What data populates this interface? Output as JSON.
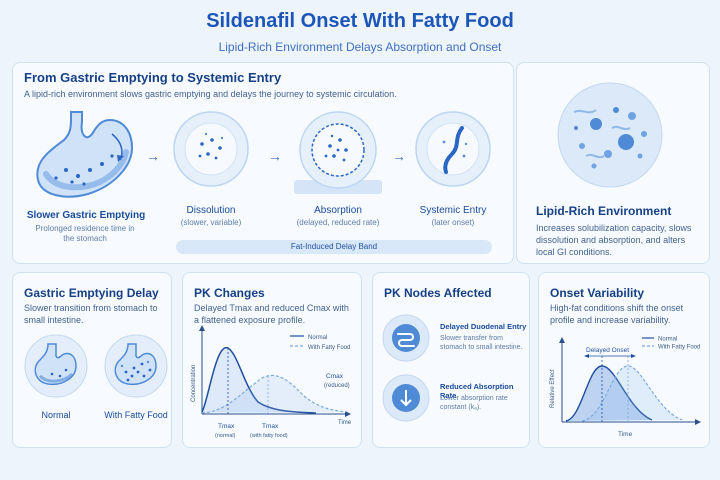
{
  "header": {
    "title": "Sildenafil Onset With Fatty Food",
    "subtitle": "Lipid-Rich Environment Delays Absorption and Onset"
  },
  "journey": {
    "title": "From Gastric Emptying to Systemic Entry",
    "description": "A lipid-rich environment slows gastric emptying and delays the journey to systemic circulation.",
    "steps": [
      {
        "name": "Slower Gastric Emptying",
        "sub": "Prolonged residence time in the stomach"
      },
      {
        "name": "Dissolution",
        "sub": "(slower, variable)"
      },
      {
        "name": "Absorption",
        "sub": "(delayed, reduced rate)"
      },
      {
        "name": "Systemic Entry",
        "sub": "(later onset)"
      }
    ],
    "band_label": "Fat-Induced Delay Band"
  },
  "lipid": {
    "title": "Lipid-Rich Environment",
    "description": "Increases solubilization capacity, slows dissolution and absorption, and alters local GI conditions."
  },
  "gastric_delay": {
    "title": "Gastric Emptying Delay",
    "description": "Slower transition from stomach to small intestine.",
    "normal_label": "Normal",
    "fatty_label": "With Fatty Food"
  },
  "pk_changes": {
    "title": "PK Changes",
    "description": "Delayed Tmax and reduced Cmax with a flattened exposure profile.",
    "legend_normal": "Normal",
    "legend_fatty": "With Fatty Food",
    "ylabel": "Concentration",
    "xlabel": "Time",
    "cmax_label": "Cmax",
    "cmax_sub": "(reduced)",
    "tmax_normal": "Tmax",
    "tmax_normal_sub": "(normal)",
    "tmax_fatty": "Tmax",
    "tmax_fatty_sub": "(with fatty food)"
  },
  "pk_nodes": {
    "title": "PK Nodes Affected",
    "nodes": [
      {
        "name": "Delayed Duodenal Entry",
        "sub": "Slower transfer from stomach to small intestine.",
        "icon": "intestine-icon"
      },
      {
        "name": "Reduced Absorption Rate",
        "sub": "Lower absorption rate constant (kₐ).",
        "icon": "down-arrow-icon"
      }
    ]
  },
  "onset": {
    "title": "Onset Variability",
    "description": "High-fat conditions shift the onset profile and increase variability.",
    "delayed_label": "Delayed Onset",
    "legend_normal": "Normal",
    "legend_fatty": "With Fatty Food",
    "ylabel": "Relative Effect",
    "xlabel": "Time"
  },
  "colors": {
    "accent": "#1c56b8",
    "curve": "#1f4f9e",
    "light": "#8fb9ea",
    "panel_bg": "#f7fbff"
  }
}
